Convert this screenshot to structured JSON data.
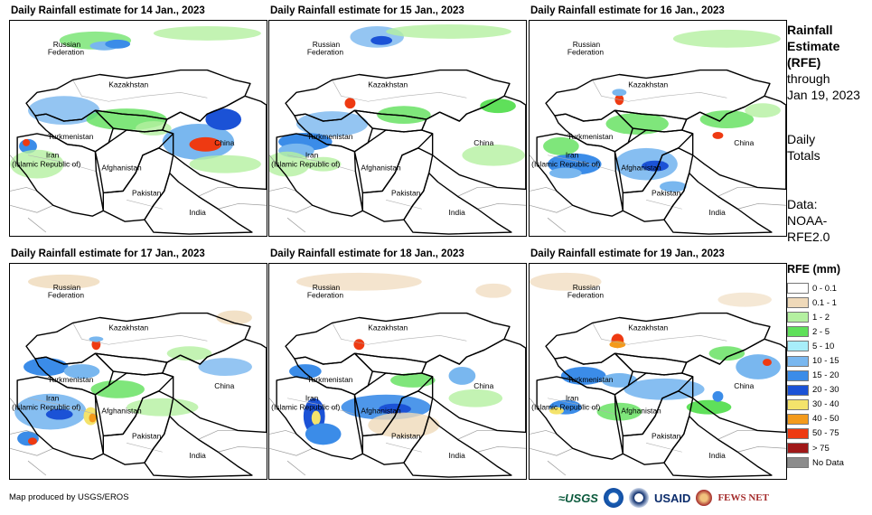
{
  "panels": [
    {
      "title": "Daily Rainfall estimate for 14 Jan., 2023"
    },
    {
      "title": "Daily Rainfall estimate for 15 Jan., 2023"
    },
    {
      "title": "Daily Rainfall estimate for 16 Jan., 2023"
    },
    {
      "title": "Daily Rainfall estimate for 17 Jan., 2023"
    },
    {
      "title": "Daily Rainfall estimate for 18 Jan., 2023"
    },
    {
      "title": "Daily Rainfall estimate for 19 Jan., 2023"
    }
  ],
  "map_labels": {
    "russia_1": "Russian",
    "russia_2": "Federation",
    "kazakhstan": "Kazakhstan",
    "turkmenistan": "Turkmenistan",
    "iran_1": "Iran",
    "iran_2": "(Islamic Republic of)",
    "afghanistan": "Afghanistan",
    "pakistan": "Pakistan",
    "india": "India",
    "china": "China"
  },
  "side": {
    "rfe_line1": "Rainfall",
    "rfe_line2": "Estimate",
    "rfe_line3": "(RFE)",
    "through": "through",
    "date": "Jan 19, 2023",
    "daily_1": "Daily",
    "daily_2": "Totals",
    "data_1": "Data:",
    "data_2": "NOAA-",
    "data_3": "RFE2.0"
  },
  "legend": {
    "title": "RFE (mm)",
    "items": [
      {
        "label": "0 - 0.1",
        "color": "#ffffff"
      },
      {
        "label": "0.1 - 1",
        "color": "#efd9b9"
      },
      {
        "label": "1 - 2",
        "color": "#b4f0a0"
      },
      {
        "label": "2 - 5",
        "color": "#5fe05a"
      },
      {
        "label": "5 - 10",
        "color": "#a8eefa"
      },
      {
        "label": "10 - 15",
        "color": "#79b7ef"
      },
      {
        "label": "15 - 20",
        "color": "#3b8ce8"
      },
      {
        "label": "20 - 30",
        "color": "#1b52d6"
      },
      {
        "label": "30 - 40",
        "color": "#f4e36b"
      },
      {
        "label": "40 - 50",
        "color": "#f39a1b"
      },
      {
        "label": "50 - 75",
        "color": "#ee3a12"
      },
      {
        "label": "> 75",
        "color": "#a01818"
      },
      {
        "label": "No Data",
        "color": "#8c8c8c"
      }
    ]
  },
  "credit": "Map produced by USGS/EROS",
  "logos": {
    "usgs": "≈USGS",
    "usaid": "USAID",
    "fews": "FEWS NET"
  }
}
